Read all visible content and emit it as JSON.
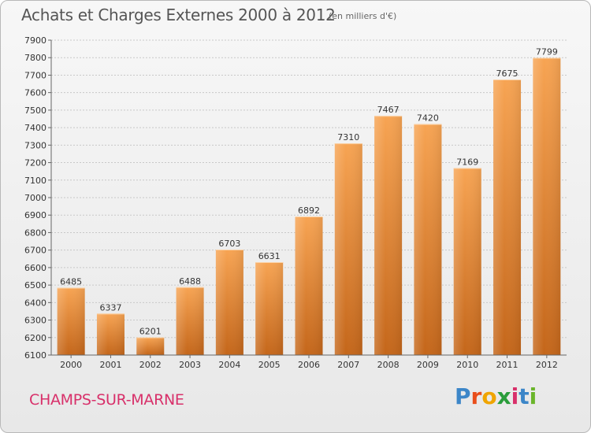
{
  "header": {
    "title": "Achats et Charges Externes 2000 à 2012",
    "unit": "(en milliers d'€)"
  },
  "footer": {
    "city": "CHAMPS-SUR-MARNE",
    "brand_letters": [
      "P",
      "r",
      "o",
      "x",
      "i",
      "t",
      "i"
    ],
    "brand_colors": [
      "#3c86c8",
      "#e94e1b",
      "#f0a500",
      "#2a9d3b",
      "#d8306a",
      "#3c86c8",
      "#6bb52b"
    ]
  },
  "colors": {
    "bar_top": "#f7a453",
    "bar_bottom": "#c4661a",
    "grid": "#c8c8c8",
    "axis": "#666666"
  },
  "chart_data": {
    "type": "bar",
    "title": "Achats et Charges Externes 2000 à 2012",
    "xlabel": "",
    "ylabel": "",
    "categories": [
      "2000",
      "2001",
      "2002",
      "2003",
      "2004",
      "2005",
      "2006",
      "2007",
      "2008",
      "2009",
      "2010",
      "2011",
      "2012"
    ],
    "values": [
      6485,
      6337,
      6201,
      6488,
      6703,
      6631,
      6892,
      7310,
      7467,
      7420,
      7169,
      7675,
      7799
    ],
    "ylim": [
      6100,
      7900
    ],
    "yticks": [
      6100,
      6200,
      6300,
      6400,
      6500,
      6600,
      6700,
      6800,
      6900,
      7000,
      7100,
      7200,
      7300,
      7400,
      7500,
      7600,
      7700,
      7800,
      7900
    ],
    "grid": true,
    "data_labels": true
  }
}
